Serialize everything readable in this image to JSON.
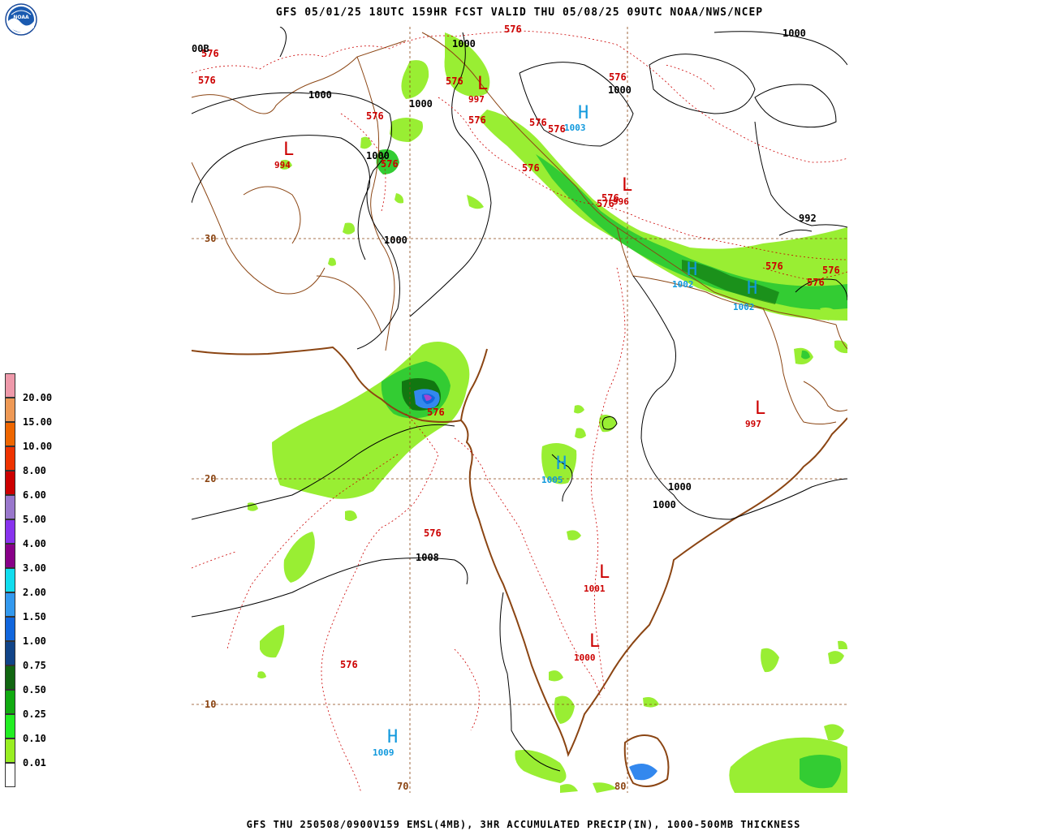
{
  "header": {
    "title": "GFS 05/01/25 18UTC 159HR FCST VALID THU 05/08/25 09UTC NOAA/NWS/NCEP"
  },
  "footer": {
    "text": "GFS THU 250508/0900V159 EMSL(4MB), 3HR ACCUMULATED PRECIP(IN), 1000-500MB THICKNESS"
  },
  "logo": {
    "icon": "noaa-logo-icon",
    "text": "NOAA"
  },
  "colors": {
    "precip_light_green": "#99ee33",
    "precip_green": "#33cc33",
    "precip_dark_green": "#117711",
    "precip_blue": "#3388ee",
    "precip_purple": "#aa44cc",
    "thickness_red": "#cc0000",
    "pressure_black": "#000000",
    "coast_brown": "#8b4513",
    "high_cyan": "#1199dd"
  },
  "legend": {
    "items": [
      {
        "label": "20.00",
        "color": "#ee99aa"
      },
      {
        "label": "15.00",
        "color": "#ee9955"
      },
      {
        "label": "10.00",
        "color": "#ee6600"
      },
      {
        "label": "8.00",
        "color": "#ee3300"
      },
      {
        "label": "6.00",
        "color": "#cc0000"
      },
      {
        "label": "5.00",
        "color": "#9977cc"
      },
      {
        "label": "4.00",
        "color": "#8833ee"
      },
      {
        "label": "3.00",
        "color": "#880088"
      },
      {
        "label": "2.00",
        "color": "#11ddee"
      },
      {
        "label": "1.50",
        "color": "#3399ee"
      },
      {
        "label": "1.00",
        "color": "#1166dd"
      },
      {
        "label": "0.75",
        "color": "#114488"
      },
      {
        "label": "0.50",
        "color": "#116611"
      },
      {
        "label": "0.25",
        "color": "#11aa11"
      },
      {
        "label": "0.10",
        "color": "#22ee22"
      },
      {
        "label": "0.01",
        "color": "#99ee22"
      },
      {
        "label": "",
        "color": "#ffffff"
      }
    ]
  },
  "grid": {
    "lat_labels": [
      "30",
      "20",
      "10"
    ],
    "lon_labels": [
      "70",
      "80"
    ]
  },
  "pressure_centers": [
    {
      "symbol": "L",
      "value": "994"
    },
    {
      "symbol": "L",
      "value": "997"
    },
    {
      "symbol": "H",
      "value": "1003"
    },
    {
      "symbol": "L",
      "value": "996"
    },
    {
      "symbol": "H",
      "value": "1002"
    },
    {
      "symbol": "H",
      "value": "1002"
    },
    {
      "symbol": "L",
      "value": "997"
    },
    {
      "symbol": "H",
      "value": "1005"
    },
    {
      "symbol": "L",
      "value": "1001"
    },
    {
      "symbol": "L",
      "value": "1000"
    },
    {
      "symbol": "H",
      "value": "1009"
    }
  ],
  "isobar_labels": [
    "1000",
    "1000",
    "1000",
    "1000",
    "1000",
    "1000",
    "1000",
    "1000",
    "992",
    "1000",
    "1000",
    "1008",
    "1000"
  ],
  "thickness_labels": [
    "576",
    "576",
    "576",
    "576",
    "576",
    "576",
    "576",
    "576",
    "576",
    "576",
    "576",
    "576",
    "576",
    "576",
    "576",
    "576",
    "576",
    "576",
    "576"
  ],
  "isobar_partial_labels": [
    "00B",
    "576"
  ]
}
